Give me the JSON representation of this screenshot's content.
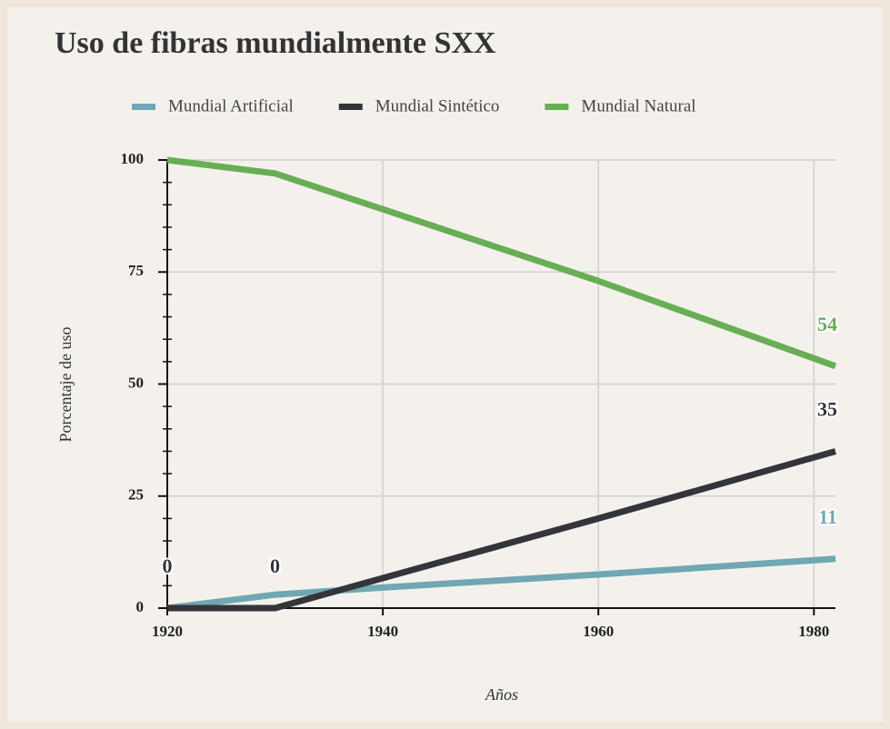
{
  "chart_data": {
    "type": "line",
    "title": "Uso de fibras mundialmente SXX",
    "x_label": "Años",
    "y_label": "Porcentaje de uso",
    "x": [
      1920,
      1930,
      1940,
      1960,
      1982
    ],
    "series": [
      {
        "name": "Mundial Artificial",
        "color": "#6fa7b4",
        "values": [
          0,
          3,
          4.6,
          7.5,
          11
        ],
        "show_labels": [
          false,
          true,
          false,
          false,
          true
        ]
      },
      {
        "name": "Mundial Sintético",
        "color": "#33353a",
        "values": [
          0,
          0,
          6.7,
          20,
          35
        ],
        "show_labels": [
          true,
          true,
          false,
          false,
          true
        ]
      },
      {
        "name": "Mundial Natural",
        "color": "#68ae55",
        "values": [
          100,
          97,
          89,
          73,
          54
        ],
        "show_labels": [
          false,
          false,
          false,
          false,
          true
        ]
      }
    ],
    "xlim": [
      1920,
      1982
    ],
    "xticks": [
      1920,
      1940,
      1960,
      1980
    ],
    "ylim": [
      0,
      100
    ],
    "yticks": [
      0,
      25,
      50,
      75,
      100
    ],
    "minor_yticks": [
      5,
      10,
      15,
      20,
      30,
      35,
      40,
      45,
      55,
      60,
      65,
      70,
      80,
      85,
      90,
      95
    ],
    "grid": true
  }
}
